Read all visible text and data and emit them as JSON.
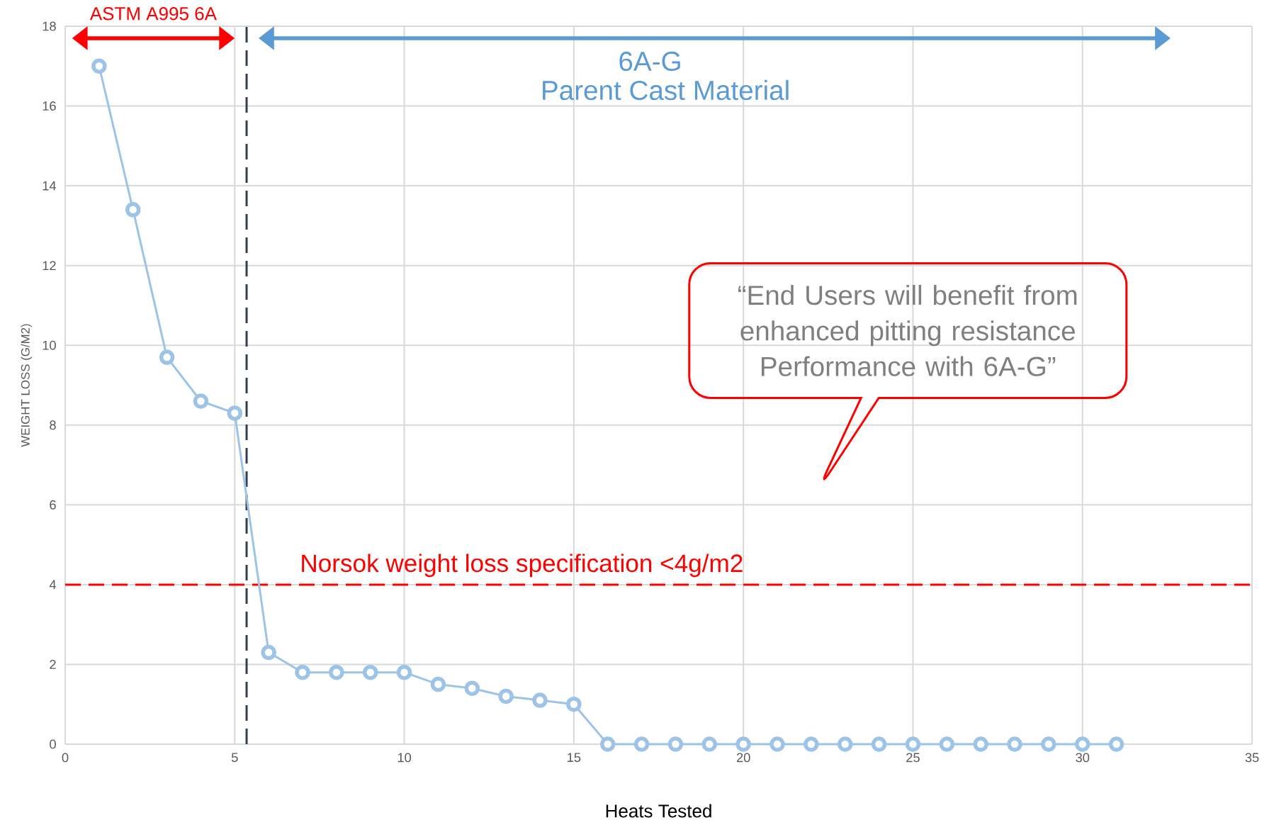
{
  "chart_data": {
    "type": "line",
    "xlabel": "Heats Tested",
    "ylabel": "WEIGHT LOSS  (G/M2)",
    "x": [
      1,
      2,
      3,
      4,
      5,
      6,
      7,
      8,
      9,
      10,
      11,
      12,
      13,
      14,
      15,
      16,
      17,
      18,
      19,
      20,
      21,
      22,
      23,
      24,
      25,
      26,
      27,
      28,
      29,
      30,
      31
    ],
    "series": [
      {
        "color": "#9dc3e6",
        "values": [
          17,
          13.4,
          9.7,
          8.6,
          8.3,
          2.3,
          1.8,
          1.8,
          1.8,
          1.8,
          1.5,
          1.4,
          1.2,
          1.1,
          1.0,
          0,
          0,
          0,
          0,
          0,
          0,
          0,
          0,
          0,
          0,
          0,
          0,
          0,
          0,
          0,
          0
        ]
      }
    ],
    "xlim": [
      0,
      35
    ],
    "xticks": [
      0,
      5,
      10,
      15,
      20,
      25,
      30,
      35
    ],
    "ylim": [
      0,
      18
    ],
    "yticks": [
      0,
      2,
      4,
      6,
      8,
      10,
      12,
      14,
      16,
      18
    ],
    "grid": true,
    "marker": "circle",
    "line_style": "solid",
    "ref_lines": [
      {
        "axis": "y",
        "value": 4,
        "label": "Norsok weight loss specification <4g/m2",
        "color": "#ff0000",
        "line_style": "dashed"
      },
      {
        "axis": "x",
        "value": 5.35,
        "color": "#333f50",
        "line_style": "dashed"
      }
    ],
    "annotations": [
      "ASTM A995 6A",
      "6A-G",
      "Parent Cast Material",
      "“End Users will benefit from enhanced pitting resistance Performance with 6A-G”"
    ]
  }
}
